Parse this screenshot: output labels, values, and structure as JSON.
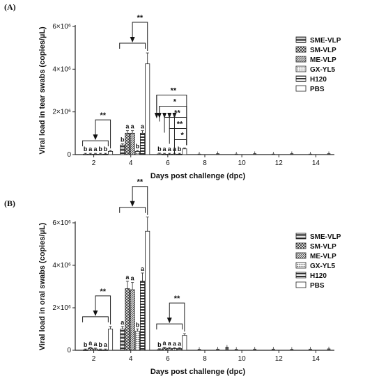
{
  "chart_data": [
    {
      "type": "bar",
      "panel_label": "(A)",
      "ylabel": "Viral load in tear swabs (copies/µL)",
      "xlabel": "Days post challenge (dpc)",
      "yticks": [
        "0",
        "2×10⁶",
        "4×10⁶",
        "6×10⁶"
      ],
      "ylim": [
        0,
        6000000
      ],
      "xticks": [
        2,
        4,
        6,
        8,
        10,
        12,
        14
      ],
      "xlim": [
        1,
        15
      ],
      "legend_position": "right",
      "series": [
        {
          "name": "SME-VLP",
          "pattern": "dense-horizontal",
          "values": [
            [
              2,
              20000
            ],
            [
              4,
              450000
            ],
            [
              6,
              30000
            ]
          ]
        },
        {
          "name": "SM-VLP",
          "pattern": "cross-hatch",
          "values": [
            [
              2,
              20000
            ],
            [
              4,
              1000000
            ],
            [
              6,
              20000
            ]
          ]
        },
        {
          "name": "ME-VLP",
          "pattern": "diagonal",
          "values": [
            [
              2,
              20000
            ],
            [
              4,
              1000000
            ],
            [
              6,
              20000
            ]
          ]
        },
        {
          "name": "GX-YL5",
          "pattern": "dots",
          "values": [
            [
              2,
              20000
            ],
            [
              4,
              150000
            ],
            [
              6,
              20000
            ]
          ]
        },
        {
          "name": "H120",
          "pattern": "horizontal-stripes",
          "values": [
            [
              2,
              20000
            ],
            [
              4,
              1000000
            ],
            [
              6,
              20000
            ]
          ]
        },
        {
          "name": "PBS",
          "pattern": "white",
          "values": [
            [
              2,
              150000
            ],
            [
              4,
              4250000
            ],
            [
              6,
              270000
            ]
          ]
        }
      ],
      "later_days_values": [
        [
          7.7,
          30000
        ],
        [
          8.7,
          50000
        ],
        [
          9.7,
          30000
        ],
        [
          10.7,
          50000
        ],
        [
          11.7,
          30000
        ],
        [
          12.7,
          50000
        ],
        [
          13.7,
          30000
        ],
        [
          14.7,
          50000
        ]
      ],
      "letters": {
        "2": [
          "b",
          "a",
          "a",
          "b",
          "b",
          ""
        ],
        "4": [
          "b",
          "a",
          "a",
          "b",
          "a",
          ""
        ],
        "6": [
          "b",
          "a",
          "a",
          "a",
          "b",
          ""
        ]
      },
      "significance": [
        {
          "day": 2,
          "label": "**"
        },
        {
          "day": 4,
          "label": "**"
        },
        {
          "day": 6,
          "labels": [
            "**",
            "*",
            "**",
            "**",
            "*"
          ]
        }
      ]
    },
    {
      "type": "bar",
      "panel_label": "(B)",
      "ylabel": "Viral load in oral swabs (copies/µL)",
      "xlabel": "Days post challenge (dpc)",
      "yticks": [
        "0",
        "2×10⁶",
        "4×10⁶",
        "6×10⁶"
      ],
      "ylim": [
        0,
        6000000
      ],
      "xticks": [
        2,
        4,
        6,
        8,
        10,
        12,
        14
      ],
      "xlim": [
        1,
        15
      ],
      "legend_position": "right",
      "series": [
        {
          "name": "SME-VLP",
          "pattern": "dense-horizontal",
          "values": [
            [
              2,
              20000
            ],
            [
              4,
              1000000
            ],
            [
              6,
              30000
            ]
          ]
        },
        {
          "name": "SM-VLP",
          "pattern": "cross-hatch",
          "values": [
            [
              2,
              100000
            ],
            [
              4,
              2900000
            ],
            [
              6,
              100000
            ]
          ]
        },
        {
          "name": "ME-VLP",
          "pattern": "diagonal",
          "values": [
            [
              2,
              60000
            ],
            [
              4,
              2850000
            ],
            [
              6,
              90000
            ]
          ]
        },
        {
          "name": "GX-YL5",
          "pattern": "dots",
          "values": [
            [
              2,
              20000
            ],
            [
              4,
              900000
            ],
            [
              6,
              80000
            ]
          ]
        },
        {
          "name": "H120",
          "pattern": "horizontal-stripes",
          "values": [
            [
              2,
              20000
            ],
            [
              4,
              3250000
            ],
            [
              6,
              80000
            ]
          ]
        },
        {
          "name": "PBS",
          "pattern": "white",
          "values": [
            [
              2,
              1000000
            ],
            [
              4,
              5600000
            ],
            [
              6,
              700000
            ]
          ]
        }
      ],
      "later_days_values": [
        [
          7.7,
          50000
        ],
        [
          8.7,
          60000
        ],
        [
          9.2,
          150000
        ],
        [
          9.7,
          50000
        ],
        [
          10.7,
          60000
        ],
        [
          11.7,
          60000
        ],
        [
          12.7,
          50000
        ],
        [
          13.7,
          60000
        ],
        [
          14.7,
          70000
        ]
      ],
      "letters": {
        "2": [
          "b",
          "a",
          "a",
          "b",
          "a",
          ""
        ],
        "4": [
          "a",
          "a",
          "a",
          "b",
          "a",
          ""
        ],
        "6": [
          "b",
          "a",
          "a",
          "a",
          "a",
          ""
        ]
      },
      "significance": [
        {
          "day": 2,
          "label": "**"
        },
        {
          "day": 4,
          "label": "**"
        },
        {
          "day": 6,
          "label": "**"
        }
      ]
    }
  ]
}
